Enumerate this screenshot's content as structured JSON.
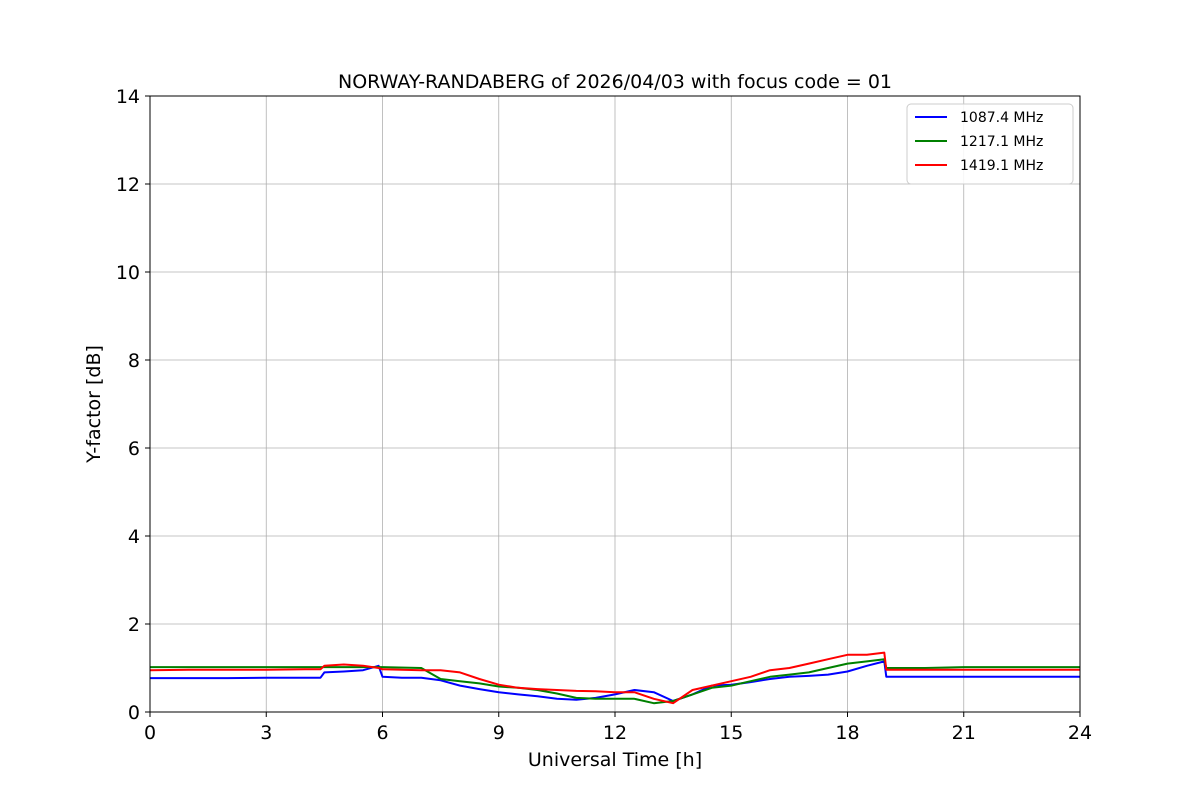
{
  "chart_data": {
    "type": "line",
    "title": "NORWAY-RANDABERG of 2026/04/03 with focus code = 01",
    "xlabel": "Universal Time [h]",
    "ylabel": "Y-factor [dB]",
    "xlim": [
      0,
      24
    ],
    "ylim": [
      0,
      14
    ],
    "xticks": [
      0,
      3,
      6,
      9,
      12,
      15,
      18,
      21,
      24
    ],
    "yticks": [
      0,
      2,
      4,
      6,
      8,
      10,
      12,
      14
    ],
    "grid": true,
    "legend_position": "top-right",
    "series": [
      {
        "name": "1087.4 MHz",
        "color": "#0000ff",
        "x": [
          0,
          1,
          2,
          3,
          4,
          4.4,
          4.5,
          5,
          5.5,
          5.9,
          6,
          6.5,
          7,
          7.5,
          8,
          8.5,
          9,
          9.5,
          10,
          10.5,
          11,
          11.5,
          12,
          12.5,
          13,
          13.5,
          14,
          14.5,
          15,
          15.5,
          16,
          16.5,
          17,
          17.5,
          18,
          18.5,
          18.95,
          19,
          20,
          21,
          22,
          23,
          24
        ],
        "y": [
          0.77,
          0.77,
          0.77,
          0.78,
          0.78,
          0.78,
          0.9,
          0.92,
          0.95,
          1.05,
          0.8,
          0.78,
          0.78,
          0.72,
          0.6,
          0.52,
          0.45,
          0.4,
          0.36,
          0.3,
          0.28,
          0.32,
          0.4,
          0.5,
          0.45,
          0.25,
          0.4,
          0.6,
          0.62,
          0.68,
          0.75,
          0.8,
          0.82,
          0.85,
          0.92,
          1.05,
          1.15,
          0.8,
          0.8,
          0.8,
          0.8,
          0.8,
          0.8
        ]
      },
      {
        "name": "1217.1 MHz",
        "color": "#008000",
        "x": [
          0,
          1,
          2,
          3,
          4,
          5,
          6,
          7,
          7.5,
          8,
          8.5,
          9,
          9.5,
          10,
          10.5,
          11,
          11.5,
          12,
          12.5,
          13,
          13.5,
          14,
          14.5,
          15,
          15.5,
          16,
          16.5,
          17,
          17.5,
          18,
          18.5,
          18.95,
          19,
          20,
          21,
          22,
          23,
          24
        ],
        "y": [
          1.02,
          1.02,
          1.02,
          1.02,
          1.02,
          1.02,
          1.02,
          1.0,
          0.75,
          0.7,
          0.65,
          0.58,
          0.55,
          0.5,
          0.42,
          0.32,
          0.3,
          0.3,
          0.3,
          0.2,
          0.25,
          0.4,
          0.55,
          0.6,
          0.7,
          0.8,
          0.85,
          0.9,
          1.0,
          1.1,
          1.15,
          1.2,
          1.0,
          1.0,
          1.02,
          1.02,
          1.02,
          1.02
        ]
      },
      {
        "name": "1419.1 MHz",
        "color": "#ff0000",
        "x": [
          0,
          1,
          2,
          3,
          4,
          4.4,
          4.5,
          5,
          5.5,
          5.9,
          6,
          7,
          7.5,
          8,
          8.5,
          9,
          9.5,
          10,
          10.5,
          11,
          11.5,
          12,
          12.5,
          13,
          13.5,
          14,
          14.5,
          15,
          15.5,
          16,
          16.5,
          17,
          17.5,
          18,
          18.5,
          18.95,
          19,
          20,
          21,
          22,
          23,
          24
        ],
        "y": [
          0.95,
          0.96,
          0.96,
          0.96,
          0.97,
          0.97,
          1.05,
          1.08,
          1.05,
          1.0,
          0.97,
          0.95,
          0.95,
          0.9,
          0.75,
          0.62,
          0.55,
          0.52,
          0.5,
          0.48,
          0.47,
          0.45,
          0.45,
          0.3,
          0.2,
          0.5,
          0.6,
          0.7,
          0.8,
          0.95,
          1.0,
          1.1,
          1.2,
          1.3,
          1.3,
          1.35,
          0.96,
          0.96,
          0.96,
          0.96,
          0.96,
          0.96
        ]
      }
    ]
  }
}
